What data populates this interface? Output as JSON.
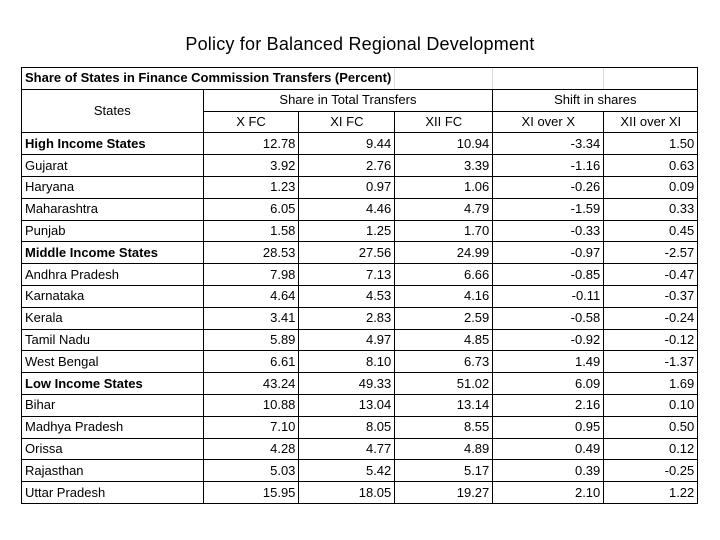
{
  "title": "Policy for Balanced Regional Development",
  "table": {
    "caption": "Share of States in Finance Commission Transfers (Percent)",
    "header": {
      "states": "States",
      "group_share": "Share in Total Transfers",
      "group_shift": "Shift in shares",
      "cols": [
        "X FC",
        "XI FC",
        "XII FC",
        "XI over X",
        "XII over XI"
      ]
    },
    "rows": [
      {
        "name": "High Income States",
        "bold": true,
        "values": [
          "12.78",
          "9.44",
          "10.94",
          "-3.34",
          "1.50"
        ]
      },
      {
        "name": "Gujarat",
        "bold": false,
        "values": [
          "3.92",
          "2.76",
          "3.39",
          "-1.16",
          "0.63"
        ]
      },
      {
        "name": "Haryana",
        "bold": false,
        "values": [
          "1.23",
          "0.97",
          "1.06",
          "-0.26",
          "0.09"
        ]
      },
      {
        "name": "Maharashtra",
        "bold": false,
        "values": [
          "6.05",
          "4.46",
          "4.79",
          "-1.59",
          "0.33"
        ]
      },
      {
        "name": "Punjab",
        "bold": false,
        "values": [
          "1.58",
          "1.25",
          "1.70",
          "-0.33",
          "0.45"
        ]
      },
      {
        "name": "Middle Income States",
        "bold": true,
        "values": [
          "28.53",
          "27.56",
          "24.99",
          "-0.97",
          "-2.57"
        ]
      },
      {
        "name": "Andhra Pradesh",
        "bold": false,
        "values": [
          "7.98",
          "7.13",
          "6.66",
          "-0.85",
          "-0.47"
        ]
      },
      {
        "name": "Karnataka",
        "bold": false,
        "values": [
          "4.64",
          "4.53",
          "4.16",
          "-0.11",
          "-0.37"
        ]
      },
      {
        "name": "Kerala",
        "bold": false,
        "values": [
          "3.41",
          "2.83",
          "2.59",
          "-0.58",
          "-0.24"
        ]
      },
      {
        "name": "Tamil Nadu",
        "bold": false,
        "values": [
          "5.89",
          "4.97",
          "4.85",
          "-0.92",
          "-0.12"
        ]
      },
      {
        "name": "West Bengal",
        "bold": false,
        "values": [
          "6.61",
          "8.10",
          "6.73",
          "1.49",
          "-1.37"
        ]
      },
      {
        "name": "Low Income States",
        "bold": true,
        "values": [
          "43.24",
          "49.33",
          "51.02",
          "6.09",
          "1.69"
        ]
      },
      {
        "name": "Bihar",
        "bold": false,
        "values": [
          "10.88",
          "13.04",
          "13.14",
          "2.16",
          "0.10"
        ]
      },
      {
        "name": "Madhya Pradesh",
        "bold": false,
        "values": [
          "7.10",
          "8.05",
          "8.55",
          "0.95",
          "0.50"
        ]
      },
      {
        "name": "Orissa",
        "bold": false,
        "values": [
          "4.28",
          "4.77",
          "4.89",
          "0.49",
          "0.12"
        ]
      },
      {
        "name": "Rajasthan",
        "bold": false,
        "values": [
          "5.03",
          "5.42",
          "5.17",
          "0.39",
          "-0.25"
        ]
      },
      {
        "name": "Uttar Pradesh",
        "bold": false,
        "values": [
          "15.95",
          "18.05",
          "19.27",
          "2.10",
          "1.22"
        ]
      }
    ]
  }
}
